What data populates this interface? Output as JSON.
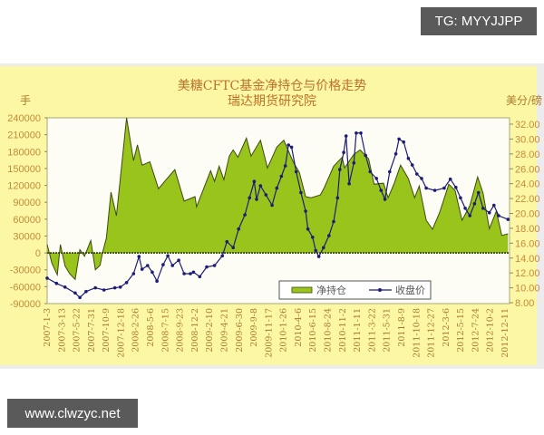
{
  "watermarks": {
    "top_right": "TG: MYYJJPP",
    "bottom_left": "www.clwzyc.net"
  },
  "colors": {
    "panel_bg": "#fbf7a4",
    "plot_bg": "#fdfdf6",
    "net_fill": "#99c41c",
    "net_line": "#3d4a10",
    "price_line": "#1c1c78",
    "title": "#c0702a",
    "axis_text": "#c88a3a"
  },
  "chart_data": {
    "type": "area+line",
    "title": "美糖CFTC基金净持仓与价格走势",
    "subtitle": "瑞达期货研究院",
    "ylabel_left": "手",
    "ylabel_right": "美分/磅",
    "xlabel": "",
    "ylim_left": [
      -90000,
      240000
    ],
    "ylim_right": [
      8,
      32
    ],
    "y_left_ticks": [
      "240000",
      "210000",
      "180000",
      "150000",
      "120000",
      "90000",
      "60000",
      "30000",
      "0",
      "-30000",
      "-60000",
      "-90000"
    ],
    "y_right_ticks": [
      "32.00",
      "30.00",
      "28.00",
      "26.00",
      "24.00",
      "22.00",
      "20.00",
      "18.00",
      "16.00",
      "14.00",
      "12.00",
      "10.00",
      "8.00"
    ],
    "x_ticks": [
      "2007-1-3",
      "2007-3-13",
      "2007-5-22",
      "2007-7-31",
      "2007-10-9",
      "2007-12-18",
      "2008-2-26",
      "2008-5-6",
      "2008-7-15",
      "2008-9-23",
      "2008-12-2",
      "2009-2-10",
      "2009-4-21",
      "2009-6-30",
      "2009-9-8",
      "2009-11-17",
      "2010-1-26",
      "2010-4-6",
      "2010-6-15",
      "2010-8-24",
      "2010-11-2",
      "2011-1-11",
      "2011-3-22",
      "2011-5-31",
      "2011-8-9",
      "2011-10-18",
      "2011-12-27",
      "2012-3-6",
      "2012-5-15",
      "2012-7-24",
      "2012-10-2",
      "2012-12-11"
    ],
    "x_range_year": [
      2007.0,
      2012.94
    ],
    "grid": false,
    "legend_position": "bottom-right inside",
    "series": [
      {
        "name": "净持仓",
        "type": "area",
        "axis": "left",
        "points": [
          [
            2007.0,
            15000
          ],
          [
            2007.06,
            -18000
          ],
          [
            2007.13,
            -39000
          ],
          [
            2007.17,
            15000
          ],
          [
            2007.23,
            -23000
          ],
          [
            2007.29,
            -37000
          ],
          [
            2007.36,
            -47000
          ],
          [
            2007.42,
            6000
          ],
          [
            2007.48,
            -6000
          ],
          [
            2007.56,
            22000
          ],
          [
            2007.62,
            -30000
          ],
          [
            2007.68,
            -22000
          ],
          [
            2007.71,
            0
          ],
          [
            2007.76,
            26000
          ],
          [
            2007.82,
            108000
          ],
          [
            2007.89,
            66000
          ],
          [
            2007.94,
            132000
          ],
          [
            2008.02,
            240000
          ],
          [
            2008.11,
            164000
          ],
          [
            2008.16,
            192000
          ],
          [
            2008.22,
            156000
          ],
          [
            2008.32,
            162000
          ],
          [
            2008.43,
            114000
          ],
          [
            2008.51,
            127000
          ],
          [
            2008.64,
            148000
          ],
          [
            2008.76,
            92000
          ],
          [
            2008.9,
            100000
          ],
          [
            2008.92,
            82000
          ],
          [
            2009.1,
            146000
          ],
          [
            2009.15,
            127000
          ],
          [
            2009.21,
            154000
          ],
          [
            2009.27,
            130000
          ],
          [
            2009.34,
            172000
          ],
          [
            2009.39,
            183000
          ],
          [
            2009.45,
            170000
          ],
          [
            2009.56,
            204000
          ],
          [
            2009.62,
            172000
          ],
          [
            2009.74,
            200000
          ],
          [
            2009.83,
            151000
          ],
          [
            2009.95,
            188000
          ],
          [
            2010.04,
            200000
          ],
          [
            2010.16,
            162000
          ],
          [
            2010.24,
            143000
          ],
          [
            2010.32,
            100000
          ],
          [
            2010.39,
            98000
          ],
          [
            2010.51,
            103000
          ],
          [
            2010.56,
            116000
          ],
          [
            2010.68,
            154000
          ],
          [
            2010.79,
            170000
          ],
          [
            2010.82,
            151000
          ],
          [
            2010.94,
            175000
          ],
          [
            2011.02,
            183000
          ],
          [
            2011.13,
            167000
          ],
          [
            2011.2,
            122000
          ],
          [
            2011.32,
            124000
          ],
          [
            2011.38,
            98000
          ],
          [
            2011.46,
            124000
          ],
          [
            2011.54,
            156000
          ],
          [
            2011.64,
            132000
          ],
          [
            2011.72,
            98000
          ],
          [
            2011.78,
            119000
          ],
          [
            2011.87,
            58000
          ],
          [
            2011.95,
            42000
          ],
          [
            2012.04,
            71000
          ],
          [
            2012.16,
            122000
          ],
          [
            2012.24,
            111000
          ],
          [
            2012.33,
            58000
          ],
          [
            2012.43,
            84000
          ],
          [
            2012.53,
            135000
          ],
          [
            2012.6,
            106000
          ],
          [
            2012.68,
            43000
          ],
          [
            2012.77,
            74000
          ],
          [
            2012.84,
            31000
          ],
          [
            2012.92,
            34000
          ]
        ]
      },
      {
        "name": "收盘价",
        "type": "line",
        "axis": "right",
        "points": [
          [
            2007.0,
            11.3
          ],
          [
            2007.12,
            10.6
          ],
          [
            2007.23,
            10.1
          ],
          [
            2007.36,
            9.3
          ],
          [
            2007.42,
            8.7
          ],
          [
            2007.5,
            9.5
          ],
          [
            2007.62,
            10.0
          ],
          [
            2007.73,
            9.7
          ],
          [
            2007.87,
            10.0
          ],
          [
            2007.94,
            10.1
          ],
          [
            2008.02,
            10.7
          ],
          [
            2008.11,
            11.9
          ],
          [
            2008.18,
            14.2
          ],
          [
            2008.22,
            12.5
          ],
          [
            2008.29,
            13.0
          ],
          [
            2008.35,
            12.1
          ],
          [
            2008.41,
            10.9
          ],
          [
            2008.49,
            13.1
          ],
          [
            2008.55,
            14.3
          ],
          [
            2008.61,
            13.0
          ],
          [
            2008.69,
            13.7
          ],
          [
            2008.76,
            11.9
          ],
          [
            2008.84,
            11.9
          ],
          [
            2008.88,
            12.1
          ],
          [
            2008.96,
            11.5
          ],
          [
            2009.05,
            12.8
          ],
          [
            2009.15,
            13.0
          ],
          [
            2009.25,
            14.3
          ],
          [
            2009.31,
            16.2
          ],
          [
            2009.39,
            15.4
          ],
          [
            2009.46,
            17.9
          ],
          [
            2009.54,
            19.8
          ],
          [
            2009.6,
            22.1
          ],
          [
            2009.66,
            24.3
          ],
          [
            2009.69,
            21.9
          ],
          [
            2009.74,
            23.7
          ],
          [
            2009.81,
            22.5
          ],
          [
            2009.89,
            21.1
          ],
          [
            2009.95,
            23.4
          ],
          [
            2010.01,
            25.0
          ],
          [
            2010.06,
            26.4
          ],
          [
            2010.1,
            29.2
          ],
          [
            2010.14,
            28.9
          ],
          [
            2010.2,
            25.6
          ],
          [
            2010.26,
            22.8
          ],
          [
            2010.32,
            20.3
          ],
          [
            2010.35,
            17.9
          ],
          [
            2010.41,
            16.8
          ],
          [
            2010.45,
            15.0
          ],
          [
            2010.49,
            14.2
          ],
          [
            2010.55,
            15.4
          ],
          [
            2010.62,
            17.0
          ],
          [
            2010.68,
            18.9
          ],
          [
            2010.73,
            22.1
          ],
          [
            2010.76,
            25.9
          ],
          [
            2010.81,
            28.2
          ],
          [
            2010.84,
            30.4
          ],
          [
            2010.88,
            24.0
          ],
          [
            2010.94,
            26.8
          ],
          [
            2010.97,
            30.8
          ],
          [
            2011.03,
            30.8
          ],
          [
            2011.09,
            27.8
          ],
          [
            2011.15,
            25.6
          ],
          [
            2011.23,
            24.7
          ],
          [
            2011.29,
            23.1
          ],
          [
            2011.34,
            21.9
          ],
          [
            2011.4,
            25.6
          ],
          [
            2011.48,
            28.0
          ],
          [
            2011.52,
            30.0
          ],
          [
            2011.58,
            29.6
          ],
          [
            2011.64,
            27.4
          ],
          [
            2011.69,
            26.5
          ],
          [
            2011.75,
            25.3
          ],
          [
            2011.81,
            24.7
          ],
          [
            2011.87,
            23.4
          ],
          [
            2011.98,
            23.1
          ],
          [
            2012.1,
            23.4
          ],
          [
            2012.18,
            24.6
          ],
          [
            2012.25,
            23.5
          ],
          [
            2012.31,
            22.1
          ],
          [
            2012.37,
            20.7
          ],
          [
            2012.43,
            19.7
          ],
          [
            2012.49,
            21.3
          ],
          [
            2012.54,
            22.8
          ],
          [
            2012.6,
            20.7
          ],
          [
            2012.68,
            20.1
          ],
          [
            2012.74,
            21.1
          ],
          [
            2012.8,
            19.7
          ],
          [
            2012.92,
            19.2
          ]
        ]
      }
    ],
    "legend": [
      "净持仓",
      "收盘价"
    ]
  }
}
